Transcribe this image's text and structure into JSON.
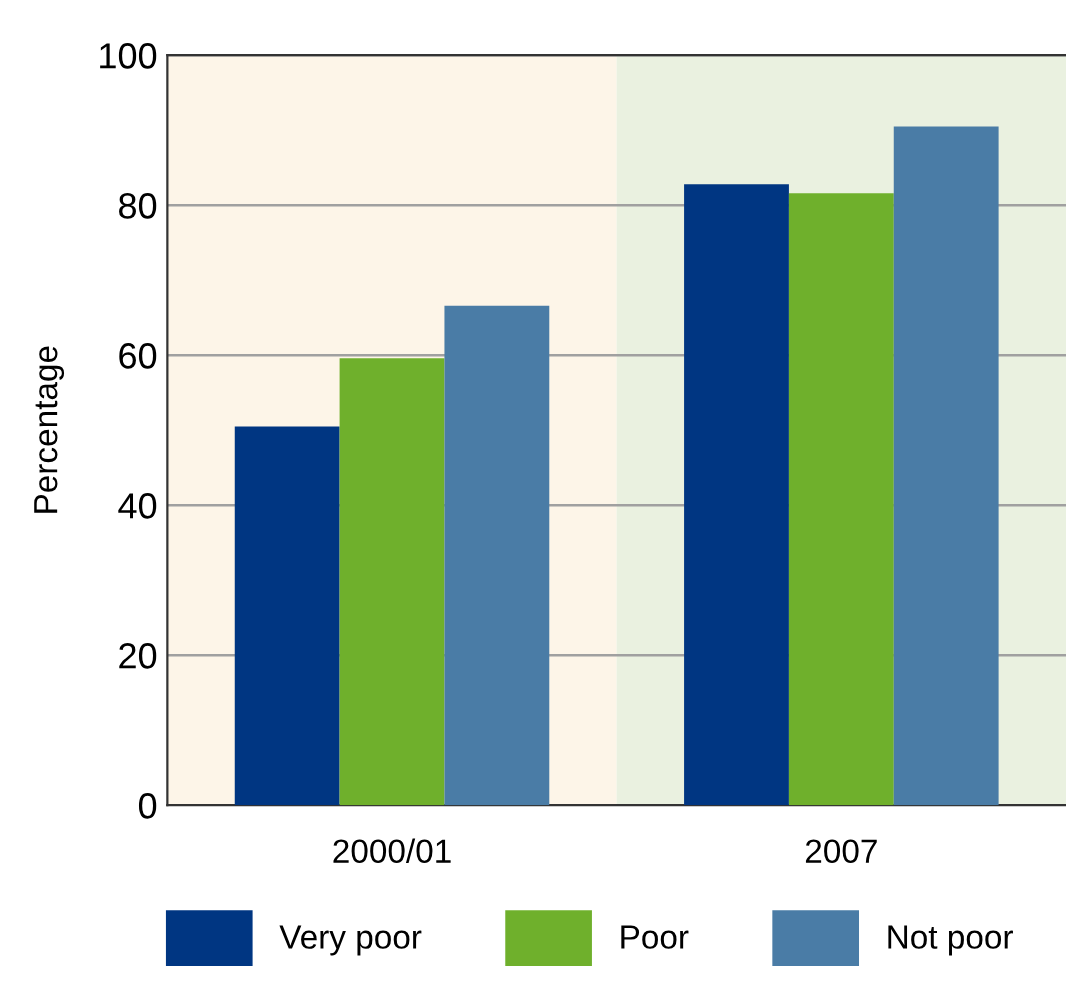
{
  "chart_data": {
    "type": "bar",
    "ylabel": "Percentage",
    "categories": [
      "2000/01",
      "2007"
    ],
    "series": [
      {
        "name": "Very poor",
        "color": "#003682",
        "values": [
          50.5,
          82.8
        ]
      },
      {
        "name": "Poor",
        "color": "#6fb02c",
        "values": [
          59.6,
          81.6
        ]
      },
      {
        "name": "Not poor",
        "color": "#4a7ca6",
        "values": [
          66.6,
          90.5
        ]
      }
    ],
    "ylim": [
      0,
      100
    ],
    "yticks": [
      0,
      20,
      40,
      60,
      80,
      100
    ],
    "grid": "y",
    "legend": "bottom",
    "bands": [
      {
        "axis": "x",
        "from": "2000/01",
        "to": "2000/01",
        "color": "#fdf5e8"
      },
      {
        "axis": "x",
        "from": "2007",
        "to": "2007",
        "color": "#eaf1e0"
      }
    ]
  }
}
